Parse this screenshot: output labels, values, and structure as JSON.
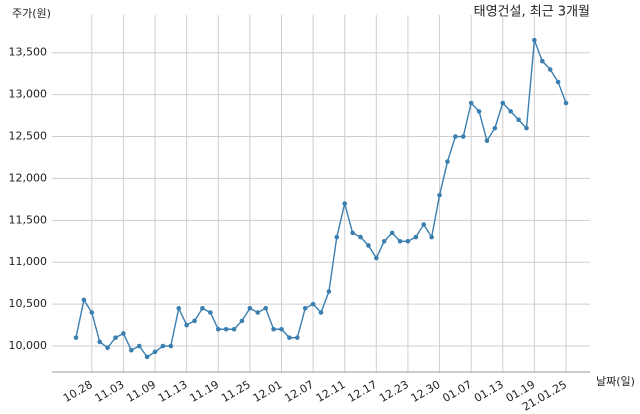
{
  "chart_data": {
    "type": "line",
    "title": "태영건설, 최근 3개월",
    "y_label": "주가(원)",
    "x_label": "날짜(일)",
    "categories": [
      null,
      null,
      "10.28",
      null,
      null,
      null,
      "11.03",
      null,
      null,
      null,
      "11.09",
      null,
      null,
      null,
      "11.13",
      null,
      null,
      null,
      "11.19",
      null,
      null,
      null,
      "11.25",
      null,
      null,
      null,
      "12.01",
      null,
      null,
      null,
      "12.07",
      null,
      null,
      null,
      "12.11",
      null,
      null,
      null,
      "12.17",
      null,
      null,
      null,
      "12.23",
      null,
      null,
      null,
      "12.30",
      null,
      null,
      null,
      "01.07",
      null,
      null,
      null,
      "01.13",
      null,
      null,
      null,
      "01.19",
      null,
      null,
      null,
      "21.01.25"
    ],
    "series": [
      {
        "name": "주가",
        "color": "#3a7fb0",
        "values": [
          10100,
          10550,
          10400,
          10050,
          9980,
          10100,
          10150,
          9950,
          10000,
          9870,
          9930,
          10000,
          10000,
          10450,
          10250,
          10300,
          10450,
          10400,
          10200,
          10200,
          10200,
          10300,
          10450,
          10400,
          10450,
          10200,
          10200,
          10100,
          10100,
          10450,
          10500,
          10400,
          10650,
          11300,
          11700,
          11350,
          11300,
          11200,
          11050,
          11250,
          11350,
          11250,
          11250,
          11300,
          11450,
          11300,
          11800,
          12200,
          12500,
          12500,
          12900,
          12800,
          12450,
          12600,
          12900,
          12800,
          12700,
          12600,
          13650,
          13400,
          13300,
          13150,
          12900
        ]
      }
    ],
    "ylim": [
      9690,
      13950
    ],
    "yticks": [
      {
        "value": 10000,
        "label": "10,000"
      },
      {
        "value": 10500,
        "label": "10,500"
      },
      {
        "value": 11000,
        "label": "11,000"
      },
      {
        "value": 11500,
        "label": "11,500"
      },
      {
        "value": 12000,
        "label": "12,000"
      },
      {
        "value": 12500,
        "label": "12,500"
      },
      {
        "value": 13000,
        "label": "13,000"
      },
      {
        "value": 13500,
        "label": "13,500"
      }
    ],
    "grid": true
  }
}
